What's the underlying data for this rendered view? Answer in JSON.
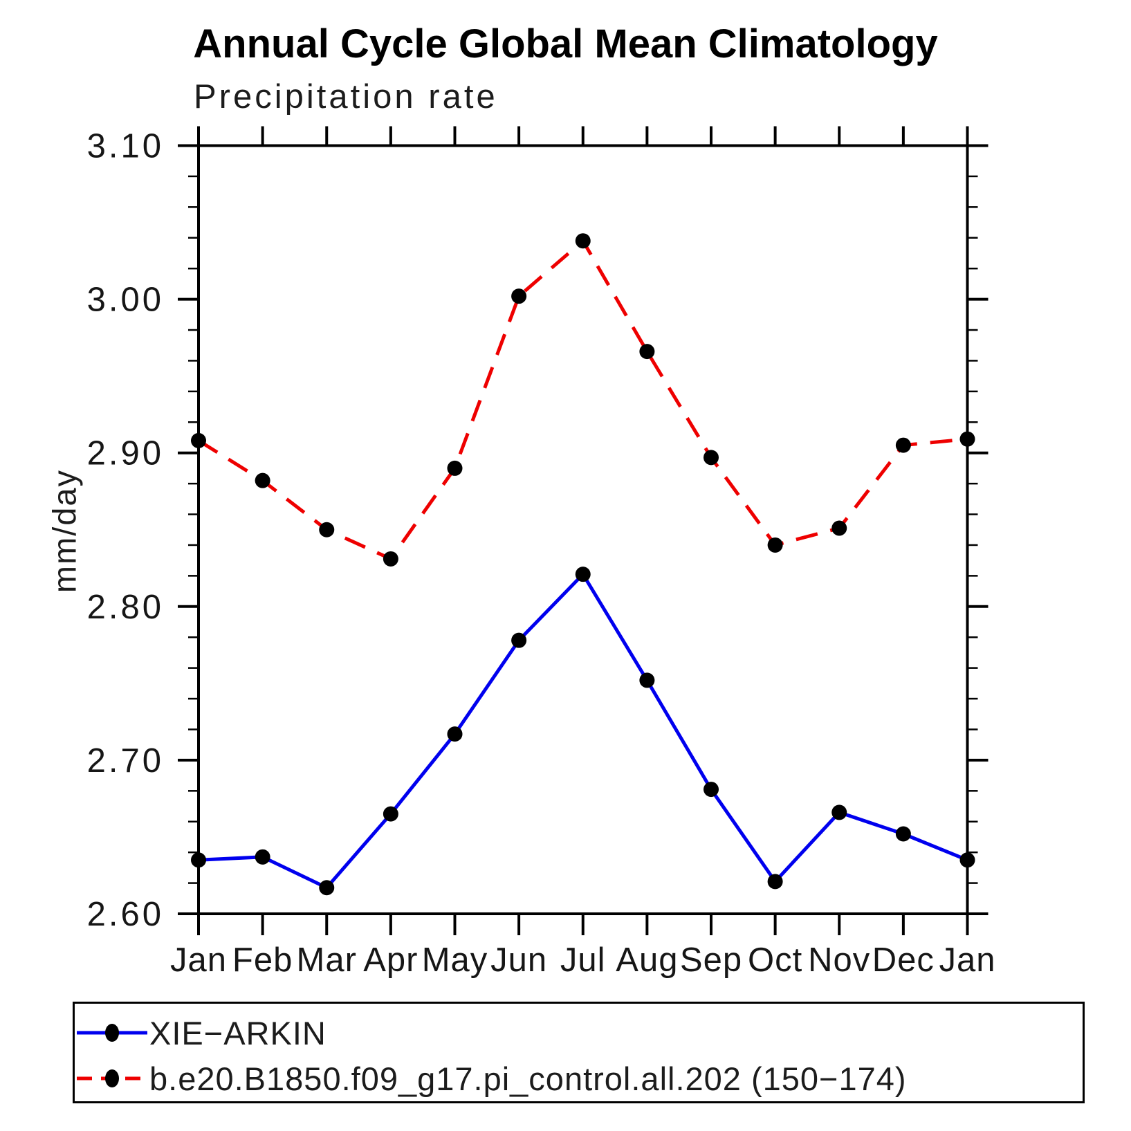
{
  "title": "Annual Cycle Global Mean Climatology",
  "subtitle": "Precipitation rate",
  "chart_data": {
    "type": "line",
    "title": "Annual Cycle Global Mean Climatology",
    "subtitle": "Precipitation rate",
    "ylabel": "mm/day",
    "xlabel": "",
    "categories": [
      "Jan",
      "Feb",
      "Mar",
      "Apr",
      "May",
      "Jun",
      "Jul",
      "Aug",
      "Sep",
      "Oct",
      "Nov",
      "Dec",
      "Jan"
    ],
    "series": [
      {
        "name": "XIE−ARKIN",
        "color": "#0000ee",
        "line_style": "solid",
        "marker": "filled-circle",
        "marker_color": "#000000",
        "values": [
          2.635,
          2.637,
          2.617,
          2.665,
          2.717,
          2.778,
          2.821,
          2.752,
          2.681,
          2.621,
          2.666,
          2.652,
          2.635
        ]
      },
      {
        "name": "b.e20.B1850.f09_g17.pi_control.all.202 (150−174)",
        "color": "#ee0000",
        "line_style": "dashed",
        "marker": "filled-circle",
        "marker_color": "#000000",
        "values": [
          2.908,
          2.882,
          2.85,
          2.831,
          2.89,
          3.002,
          3.038,
          2.966,
          2.897,
          2.84,
          2.851,
          2.905,
          2.909
        ]
      }
    ],
    "ylim": [
      2.6,
      3.1
    ],
    "yticks": [
      "2.60",
      "2.70",
      "2.80",
      "2.90",
      "3.00",
      "3.10"
    ],
    "ytick_minor_interval": 0.02,
    "grid": false,
    "legend_position": "bottom"
  }
}
